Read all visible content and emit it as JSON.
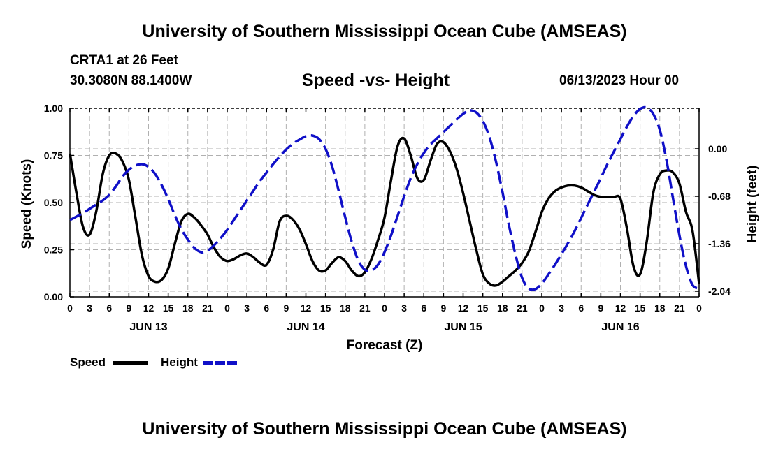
{
  "header": {
    "title": "University of Southern Mississippi Ocean Cube (AMSEAS)",
    "station": "CRTA1 at 26 Feet",
    "coords": "30.3080N  88.1400W",
    "chart_title": "Speed -vs- Height",
    "date": "06/13/2023 Hour 00"
  },
  "footer": {
    "title": "University of Southern Mississippi Ocean Cube (AMSEAS)"
  },
  "legend": {
    "speed_label": "Speed",
    "height_label": "Height"
  },
  "colors": {
    "speed": "#000000",
    "height": "#1010c8",
    "grid": "#b0b0b0"
  },
  "chart_data": {
    "type": "line",
    "title": "Speed -vs- Height",
    "xlabel": "Forecast (Z)",
    "ylabel": "Speed (Knots)",
    "y2label": "Height (feet)",
    "xlim": [
      0,
      96
    ],
    "ylim": [
      0,
      1
    ],
    "y2lim": [
      -2.04,
      0.6
    ],
    "x_ticks": [
      0,
      3,
      6,
      9,
      12,
      15,
      18,
      21,
      24,
      27,
      30,
      33,
      36,
      39,
      42,
      45,
      48,
      51,
      54,
      57,
      60,
      63,
      66,
      69,
      72,
      75,
      78,
      81,
      84,
      87,
      90,
      93,
      96
    ],
    "x_tick_labels": [
      "0",
      "3",
      "6",
      "9",
      "12",
      "15",
      "18",
      "21",
      "0",
      "3",
      "6",
      "9",
      "12",
      "15",
      "18",
      "21",
      "0",
      "3",
      "6",
      "9",
      "12",
      "15",
      "18",
      "21",
      "0",
      "3",
      "6",
      "9",
      "12",
      "15",
      "18",
      "21",
      "0"
    ],
    "y_ticks": [
      0,
      0.25,
      0.5,
      0.75,
      1.0
    ],
    "y_tick_labels": [
      "0.00",
      "0.25",
      "0.50",
      "0.75",
      "1.00"
    ],
    "y2_ticks": [
      0,
      -0.68,
      -1.36,
      -2.04
    ],
    "y2_tick_labels": [
      "0.00",
      "-0.68",
      "-1.36",
      "-2.04"
    ],
    "day_labels": [
      {
        "x": 12,
        "label": "JUN 13"
      },
      {
        "x": 36,
        "label": "JUN 14"
      },
      {
        "x": 60,
        "label": "JUN 15"
      },
      {
        "x": 84,
        "label": "JUN 16"
      }
    ],
    "series": [
      {
        "name": "Speed",
        "axis": "left",
        "style": "solid",
        "x": [
          0,
          1,
          2,
          3,
          4,
          5,
          6,
          7,
          8,
          9,
          10,
          11,
          12,
          13,
          14,
          15,
          16,
          17,
          18,
          19,
          20,
          21,
          22,
          23,
          24,
          25,
          26,
          27,
          28,
          29,
          30,
          31,
          32,
          33,
          34,
          35,
          36,
          37,
          38,
          39,
          40,
          41,
          42,
          43,
          44,
          45,
          46,
          47,
          48,
          49,
          50,
          51,
          52,
          53,
          54,
          55,
          56,
          57,
          58,
          59,
          60,
          61,
          62,
          63,
          64,
          65,
          66,
          67,
          68,
          69,
          70,
          71,
          72,
          73,
          74,
          75,
          76,
          77,
          78,
          79,
          80,
          81,
          82,
          83,
          84,
          85,
          86,
          87,
          88,
          89,
          90,
          91,
          92,
          93,
          94,
          95,
          96
        ],
        "values": [
          0.76,
          0.55,
          0.37,
          0.33,
          0.45,
          0.65,
          0.75,
          0.76,
          0.72,
          0.62,
          0.42,
          0.22,
          0.11,
          0.08,
          0.09,
          0.15,
          0.28,
          0.4,
          0.44,
          0.42,
          0.38,
          0.33,
          0.26,
          0.21,
          0.19,
          0.2,
          0.22,
          0.23,
          0.21,
          0.18,
          0.17,
          0.25,
          0.4,
          0.43,
          0.41,
          0.36,
          0.28,
          0.19,
          0.14,
          0.14,
          0.18,
          0.21,
          0.19,
          0.14,
          0.11,
          0.13,
          0.2,
          0.3,
          0.42,
          0.62,
          0.8,
          0.84,
          0.75,
          0.63,
          0.62,
          0.72,
          0.81,
          0.82,
          0.77,
          0.68,
          0.55,
          0.4,
          0.25,
          0.12,
          0.07,
          0.06,
          0.08,
          0.11,
          0.14,
          0.18,
          0.24,
          0.34,
          0.45,
          0.52,
          0.56,
          0.58,
          0.59,
          0.59,
          0.58,
          0.56,
          0.54,
          0.53,
          0.53,
          0.53,
          0.52,
          0.36,
          0.16,
          0.12,
          0.29,
          0.55,
          0.65,
          0.67,
          0.66,
          0.6,
          0.45,
          0.35,
          0.07
        ]
      },
      {
        "name": "Height",
        "axis": "right",
        "style": "dashed",
        "x": [
          0,
          1,
          2,
          3,
          4,
          5,
          6,
          7,
          8,
          9,
          10,
          11,
          12,
          13,
          14,
          15,
          16,
          17,
          18,
          19,
          20,
          21,
          22,
          23,
          24,
          25,
          26,
          27,
          28,
          29,
          30,
          31,
          32,
          33,
          34,
          35,
          36,
          37,
          38,
          39,
          40,
          41,
          42,
          43,
          44,
          45,
          46,
          47,
          48,
          49,
          50,
          51,
          52,
          53,
          54,
          55,
          56,
          57,
          58,
          59,
          60,
          61,
          62,
          63,
          64,
          65,
          66,
          67,
          68,
          69,
          70,
          71,
          72,
          73,
          74,
          75,
          76,
          77,
          78,
          79,
          80,
          81,
          82,
          83,
          84,
          85,
          86,
          87,
          88,
          89,
          90,
          91,
          92,
          93,
          94,
          95,
          96
        ],
        "values": [
          -1.02,
          -0.97,
          -0.92,
          -0.86,
          -0.8,
          -0.74,
          -0.66,
          -0.54,
          -0.4,
          -0.3,
          -0.24,
          -0.22,
          -0.26,
          -0.36,
          -0.52,
          -0.72,
          -0.95,
          -1.15,
          -1.3,
          -1.42,
          -1.48,
          -1.46,
          -1.38,
          -1.28,
          -1.16,
          -1.02,
          -0.88,
          -0.74,
          -0.6,
          -0.46,
          -0.34,
          -0.22,
          -0.11,
          -0.01,
          0.07,
          0.13,
          0.18,
          0.19,
          0.14,
          0.0,
          -0.25,
          -0.6,
          -0.98,
          -1.33,
          -1.6,
          -1.73,
          -1.74,
          -1.66,
          -1.48,
          -1.24,
          -0.96,
          -0.68,
          -0.42,
          -0.22,
          -0.06,
          0.06,
          0.15,
          0.24,
          0.33,
          0.42,
          0.5,
          0.55,
          0.52,
          0.4,
          0.17,
          -0.18,
          -0.62,
          -1.1,
          -1.52,
          -1.85,
          -2.0,
          -2.01,
          -1.93,
          -1.8,
          -1.66,
          -1.51,
          -1.35,
          -1.18,
          -0.99,
          -0.8,
          -0.61,
          -0.42,
          -0.22,
          -0.04,
          0.14,
          0.32,
          0.47,
          0.57,
          0.59,
          0.5,
          0.27,
          -0.15,
          -0.7,
          -1.24,
          -1.68,
          -1.95,
          -2.0
        ]
      }
    ]
  }
}
